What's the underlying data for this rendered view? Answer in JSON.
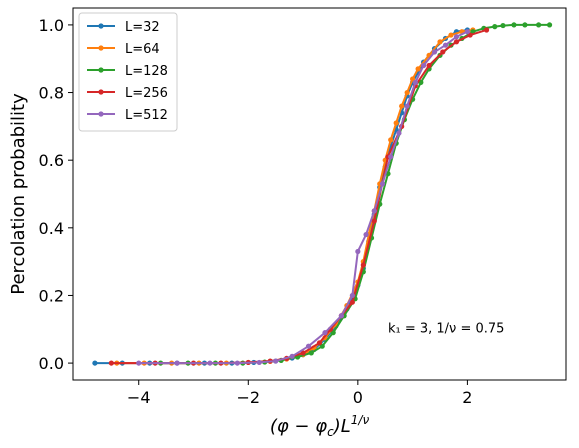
{
  "chart_data": {
    "type": "line",
    "title": "",
    "xlabel": "(φ − φ_c)L^{1/ν}",
    "ylabel": "Percolation probability",
    "xlim": [
      -5.2,
      3.8
    ],
    "ylim": [
      -0.05,
      1.05
    ],
    "xticks": [
      -4,
      -2,
      0,
      2
    ],
    "xtick_labels": [
      "−4",
      "−2",
      "0",
      "2"
    ],
    "yticks": [
      0.0,
      0.2,
      0.4,
      0.6,
      0.8,
      1.0
    ],
    "ytick_labels": [
      "0.0",
      "0.2",
      "0.4",
      "0.6",
      "0.8",
      "1.0"
    ],
    "grid": false,
    "legend_position": "top-left",
    "annotation": "k₁ = 3, 1/ν = 0.75",
    "series": [
      {
        "name": "L=32",
        "color": "#1f77b4",
        "x": [
          -4.8,
          -4.3,
          -3.8,
          -3.3,
          -2.8,
          -2.3,
          -1.9,
          -1.5,
          -1.2,
          -1.0,
          -0.8,
          -0.6,
          -0.4,
          -0.2,
          0.0,
          0.1,
          0.2,
          0.3,
          0.4,
          0.5,
          0.6,
          0.7,
          0.8,
          0.9,
          1.0,
          1.1,
          1.2,
          1.4,
          1.6,
          1.8,
          2.0
        ],
        "y": [
          0.0,
          0.0,
          0.0,
          0.0,
          0.0,
          0.0,
          0.002,
          0.006,
          0.015,
          0.025,
          0.04,
          0.07,
          0.11,
          0.16,
          0.23,
          0.28,
          0.36,
          0.44,
          0.52,
          0.58,
          0.64,
          0.69,
          0.74,
          0.79,
          0.83,
          0.86,
          0.89,
          0.93,
          0.96,
          0.98,
          0.985
        ]
      },
      {
        "name": "L=64",
        "color": "#ff7f0e",
        "x": [
          -4.4,
          -3.9,
          -3.4,
          -2.9,
          -2.4,
          -2.0,
          -1.6,
          -1.3,
          -1.0,
          -0.8,
          -0.6,
          -0.4,
          -0.2,
          0.0,
          0.1,
          0.2,
          0.3,
          0.4,
          0.5,
          0.6,
          0.7,
          0.8,
          0.9,
          1.0,
          1.1,
          1.3,
          1.5,
          1.7,
          1.9,
          2.1
        ],
        "y": [
          0.0,
          0.0,
          0.0,
          0.0,
          0.0,
          0.002,
          0.005,
          0.012,
          0.025,
          0.045,
          0.075,
          0.115,
          0.17,
          0.24,
          0.3,
          0.38,
          0.45,
          0.53,
          0.6,
          0.66,
          0.71,
          0.76,
          0.8,
          0.84,
          0.87,
          0.91,
          0.95,
          0.97,
          0.98,
          0.985
        ]
      },
      {
        "name": "L=128",
        "color": "#2ca02c",
        "x": [
          -3.6,
          -3.1,
          -2.6,
          -2.1,
          -1.7,
          -1.4,
          -1.1,
          -0.85,
          -0.65,
          -0.45,
          -0.25,
          -0.05,
          0.1,
          0.25,
          0.4,
          0.55,
          0.7,
          0.85,
          1.0,
          1.15,
          1.3,
          1.5,
          1.7,
          1.9,
          2.1,
          2.3,
          2.5,
          2.65,
          2.85,
          3.05,
          3.3,
          3.5
        ],
        "y": [
          0.0,
          0.0,
          0.0,
          0.0,
          0.003,
          0.008,
          0.018,
          0.03,
          0.05,
          0.09,
          0.14,
          0.19,
          0.27,
          0.37,
          0.47,
          0.56,
          0.65,
          0.72,
          0.78,
          0.83,
          0.87,
          0.91,
          0.94,
          0.96,
          0.98,
          0.99,
          0.995,
          0.998,
          1.0,
          1.0,
          1.0,
          1.0
        ]
      },
      {
        "name": "L=256",
        "color": "#d62728",
        "x": [
          -4.5,
          -3.7,
          -3.0,
          -2.5,
          -2.0,
          -1.6,
          -1.3,
          -1.0,
          -0.7,
          -0.5,
          -0.3,
          -0.1,
          0.1,
          0.3,
          0.55,
          0.8,
          1.05,
          1.3,
          1.55,
          1.8,
          2.05,
          2.35
        ],
        "y": [
          0.0,
          0.0,
          0.0,
          0.0,
          0.002,
          0.006,
          0.014,
          0.03,
          0.06,
          0.1,
          0.14,
          0.18,
          0.29,
          0.42,
          0.61,
          0.7,
          0.82,
          0.88,
          0.92,
          0.95,
          0.97,
          0.985
        ]
      },
      {
        "name": "L=512",
        "color": "#9467bd",
        "x": [
          -4.0,
          -3.3,
          -2.7,
          -2.2,
          -1.8,
          -1.5,
          -1.2,
          -0.9,
          -0.6,
          -0.3,
          -0.1,
          0.0,
          0.15,
          0.3,
          0.45,
          0.6,
          0.75,
          0.9,
          1.05,
          1.2,
          1.4,
          1.6,
          1.8,
          2.0
        ],
        "y": [
          0.0,
          0.0,
          0.0,
          0.0,
          0.002,
          0.006,
          0.02,
          0.05,
          0.09,
          0.14,
          0.2,
          0.33,
          0.38,
          0.45,
          0.53,
          0.61,
          0.68,
          0.76,
          0.83,
          0.88,
          0.92,
          0.94,
          0.965,
          0.98
        ]
      }
    ]
  }
}
